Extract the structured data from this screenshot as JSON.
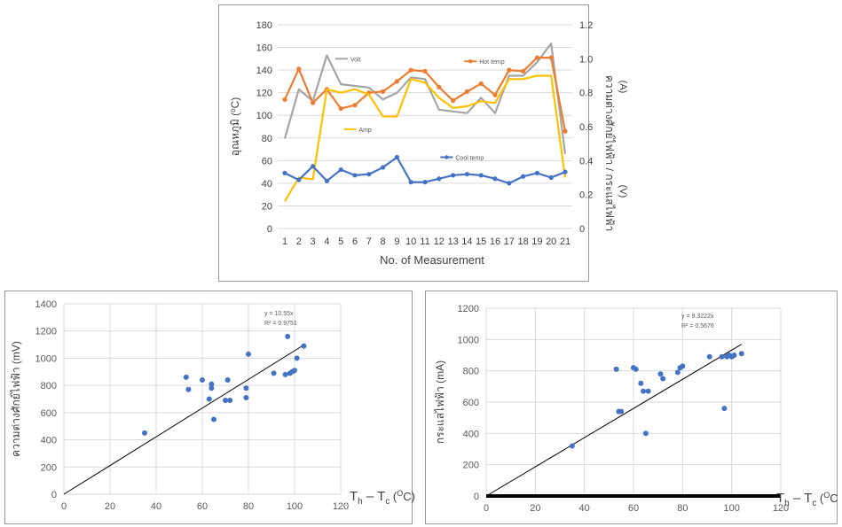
{
  "chart_data": [
    {
      "type": "line",
      "xlabel": "No. of Measurement",
      "ylabel_left": "อุณหภูมิ (°C)",
      "ylabel_right": "ความต่างศักย์ไฟฟ้า / กระแสไฟฟ้า (V) (A)",
      "ylabel_left_base": "อุณหภูมิ (",
      "ylabel_left_unit": "C)",
      "ylabel_right_main": "ความต่างศักย์ไฟฟ้า / กระแสไฟฟ้า",
      "ylabel_right_unit_a": "(A)",
      "ylabel_right_unit_v": "(V)",
      "x": [
        1,
        2,
        3,
        4,
        5,
        6,
        7,
        8,
        9,
        10,
        11,
        12,
        13,
        14,
        15,
        16,
        17,
        18,
        19,
        20,
        21
      ],
      "x_ticks": [
        "1",
        "2",
        "3",
        "4",
        "5",
        "6",
        "7",
        "8",
        "9",
        "10",
        "11",
        "12",
        "13",
        "14",
        "15",
        "16",
        "17",
        "18",
        "19",
        "20",
        "21"
      ],
      "ylim_left": [
        0,
        180
      ],
      "ylim_right": [
        0,
        1.2
      ],
      "y_ticks_left": [
        "0",
        "20",
        "40",
        "60",
        "80",
        "100",
        "120",
        "140",
        "160",
        "180"
      ],
      "y_ticks_right": [
        "0",
        "0.2",
        "0.4",
        "0.6",
        "0.8",
        "1.0",
        "1.2"
      ],
      "grid": true,
      "series": [
        {
          "name": "Volt",
          "axis": "right",
          "color": "#a5a5a5",
          "marker": false,
          "values": [
            0.53,
            0.82,
            0.75,
            1.02,
            0.85,
            0.84,
            0.83,
            0.76,
            0.8,
            0.89,
            0.88,
            0.7,
            0.69,
            0.68,
            0.77,
            0.68,
            0.9,
            0.9,
            0.98,
            1.09,
            0.44
          ]
        },
        {
          "name": "Hot temp",
          "axis": "left",
          "color": "#ed7d31",
          "marker": true,
          "values": [
            114,
            141,
            111,
            123,
            106,
            109,
            120,
            121,
            130,
            140,
            139,
            125,
            113,
            121,
            128,
            118,
            140,
            139,
            151,
            151,
            86
          ]
        },
        {
          "name": "Amp",
          "axis": "right",
          "color": "#ffc000",
          "marker": false,
          "values": [
            0.16,
            0.3,
            0.29,
            0.82,
            0.8,
            0.82,
            0.79,
            0.66,
            0.66,
            0.88,
            0.86,
            0.77,
            0.71,
            0.72,
            0.75,
            0.74,
            0.88,
            0.88,
            0.9,
            0.9,
            0.3
          ]
        },
        {
          "name": "Cool temp",
          "axis": "left",
          "color": "#4472c4",
          "marker": true,
          "values": [
            49,
            43,
            55,
            42,
            52,
            47,
            48,
            54,
            63,
            41,
            41,
            44,
            47,
            48,
            47,
            44,
            40,
            46,
            49,
            45,
            50
          ]
        }
      ],
      "legend_labels": [
        {
          "name": "Volt",
          "x": 4.6,
          "y": 1.0
        },
        {
          "name": "Hot temp",
          "x": 13.8,
          "y": 0.985
        },
        {
          "name": "Amp",
          "x": 5.2,
          "y": 0.585
        },
        {
          "name": "Cool temp",
          "x": 12.1,
          "y": 0.42
        }
      ]
    },
    {
      "type": "scatter",
      "ylabel": "ความต่างศักย์ไฟฟ้า (mV)",
      "xlabel_main": "T",
      "xlabel_sub_h": "h",
      "xlabel_dash": " – T",
      "xlabel_sub_c": "c",
      "xlabel_unit_base": "(",
      "xlabel_unit_deg": "O",
      "xlabel_unit_c": "C)",
      "xlim": [
        0,
        120
      ],
      "ylim": [
        0,
        1400
      ],
      "x_ticks": [
        "0",
        "20",
        "40",
        "60",
        "80",
        "100",
        "120"
      ],
      "y_ticks": [
        "0",
        "200",
        "400",
        "600",
        "800",
        "1000",
        "1200",
        "1400"
      ],
      "trendline": {
        "slope": 10.55,
        "equation": "y = 10.55x",
        "r2": "R² = 0.9751"
      },
      "points": [
        [
          35,
          450
        ],
        [
          53,
          860
        ],
        [
          54,
          770
        ],
        [
          60,
          840
        ],
        [
          63,
          700
        ],
        [
          64,
          780
        ],
        [
          64,
          810
        ],
        [
          65,
          550
        ],
        [
          70,
          690
        ],
        [
          71,
          840
        ],
        [
          72,
          690
        ],
        [
          79,
          780
        ],
        [
          79,
          710
        ],
        [
          80,
          1030
        ],
        [
          91,
          890
        ],
        [
          96,
          880
        ],
        [
          97,
          1160
        ],
        [
          98,
          890
        ],
        [
          99,
          900
        ],
        [
          100,
          910
        ],
        [
          101,
          1000
        ],
        [
          104,
          1090
        ]
      ],
      "color": "#4472c4"
    },
    {
      "type": "scatter",
      "ylabel": "กระแสไฟฟ้า (mA)",
      "xlabel_main": "T",
      "xlabel_sub_h": "h",
      "xlabel_dash": " – T",
      "xlabel_sub_c": "c",
      "xlabel_unit_base": "(",
      "xlabel_unit_deg": "O",
      "xlabel_unit_c": "C",
      "xlim": [
        0,
        120
      ],
      "ylim": [
        0,
        1200
      ],
      "x_ticks": [
        "0",
        "20",
        "40",
        "60",
        "80",
        "100",
        "120"
      ],
      "y_ticks": [
        "0",
        "200",
        "400",
        "600",
        "800",
        "1000",
        "1200"
      ],
      "trendline": {
        "slope": 9.3222,
        "equation": "y = 9.3222x",
        "r2": "R² = 0.5676"
      },
      "points": [
        [
          35,
          320
        ],
        [
          53,
          810
        ],
        [
          54,
          540
        ],
        [
          55,
          540
        ],
        [
          60,
          820
        ],
        [
          61,
          810
        ],
        [
          63,
          720
        ],
        [
          64,
          670
        ],
        [
          65,
          400
        ],
        [
          66,
          670
        ],
        [
          71,
          780
        ],
        [
          72,
          750
        ],
        [
          78,
          790
        ],
        [
          79,
          820
        ],
        [
          80,
          830
        ],
        [
          91,
          890
        ],
        [
          96,
          890
        ],
        [
          97,
          560
        ],
        [
          98,
          890
        ],
        [
          99,
          900
        ],
        [
          100,
          890
        ],
        [
          101,
          900
        ],
        [
          104,
          910
        ]
      ],
      "color": "#4472c4"
    }
  ]
}
